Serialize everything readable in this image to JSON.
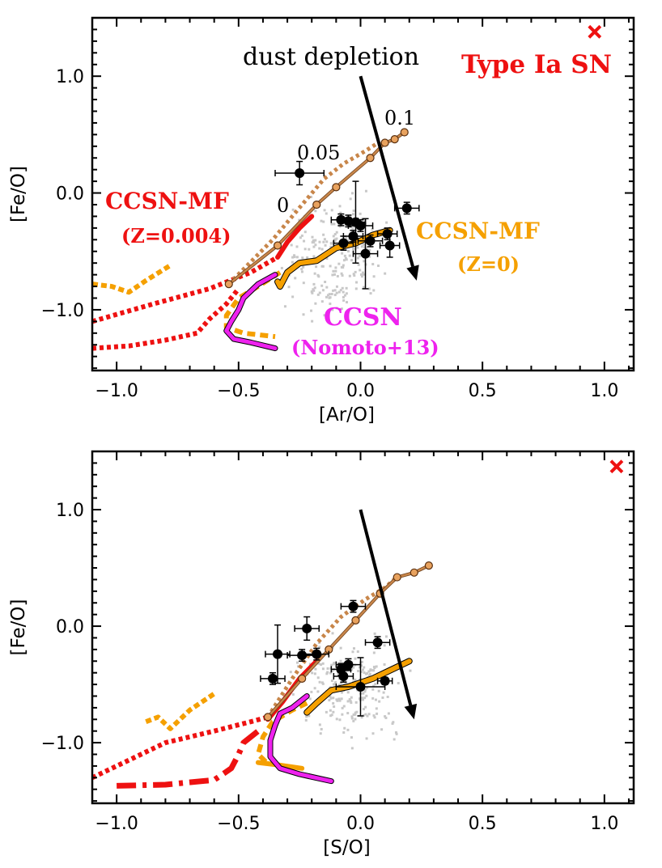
{
  "colors": {
    "red": "#ee1111",
    "orange": "#f5a000",
    "magenta": "#ee22ee",
    "brown": "#c8864a",
    "black": "#000000",
    "grey": "#c8c8c8"
  },
  "chart_data": [
    {
      "id": "top",
      "type": "scatter",
      "xlabel": "[Ar/O]",
      "ylabel": "[Fe/O]",
      "xlim": [
        -1.1,
        1.12
      ],
      "ylim": [
        -1.52,
        1.5
      ],
      "xticks": [
        -1.0,
        -0.5,
        0.0,
        0.5,
        1.0
      ],
      "xtick_labels": [
        "−1.0",
        "−0.5",
        "0.0",
        "0.5",
        "1.0"
      ],
      "yticks": [
        -1.0,
        0.0,
        1.0
      ],
      "ytick_labels": [
        "−1.0",
        "0.0",
        "1.0"
      ],
      "annotations": {
        "dust": "dust depletion",
        "typeia": "Type Ia SN",
        "ccsn_mf_z004_1": "CCSN-MF",
        "ccsn_mf_z004_2": "(Z=0.004)",
        "ccsn_mf_z0_1": "CCSN-MF",
        "ccsn_mf_z0_2": "(Z=0)",
        "ccsn_1": "CCSN",
        "ccsn_2": "(Nomoto+13)",
        "frac_0": "0",
        "frac_005": "0.05",
        "frac_01": "0.1"
      },
      "typeia_marker": [
        0.96,
        1.38
      ],
      "dust_arrow": [
        [
          0.0,
          1.0
        ],
        [
          0.23,
          -0.75
        ]
      ],
      "observations": [
        {
          "x": -0.25,
          "y": 0.17,
          "xerr": 0.1,
          "yerr": 0.1
        },
        {
          "x": -0.08,
          "y": -0.23,
          "xerr": 0.04,
          "yerr": 0.05
        },
        {
          "x": -0.05,
          "y": -0.24,
          "xerr": 0.04,
          "yerr": 0.05
        },
        {
          "x": -0.02,
          "y": -0.25,
          "xerr": 0.04,
          "yerr": 0.35
        },
        {
          "x": 0.0,
          "y": -0.28,
          "xerr": 0.05,
          "yerr": 0.05
        },
        {
          "x": -0.07,
          "y": -0.43,
          "xerr": 0.04,
          "yerr": 0.06
        },
        {
          "x": -0.03,
          "y": -0.37,
          "xerr": 0.04,
          "yerr": 0.05
        },
        {
          "x": 0.04,
          "y": -0.41,
          "xerr": 0.05,
          "yerr": 0.05
        },
        {
          "x": 0.02,
          "y": -0.52,
          "xerr": 0.05,
          "yerr": 0.3
        },
        {
          "x": 0.11,
          "y": -0.35,
          "xerr": 0.04,
          "yerr": 0.05
        },
        {
          "x": 0.12,
          "y": -0.45,
          "xerr": 0.04,
          "yerr": 0.1
        },
        {
          "x": 0.19,
          "y": -0.13,
          "xerr": 0.05,
          "yerr": 0.05
        }
      ],
      "mixing_line": {
        "x": [
          -0.54,
          -0.34,
          -0.18,
          -0.1,
          0.04,
          0.1,
          0.14,
          0.18
        ],
        "y": [
          -0.78,
          -0.45,
          -0.1,
          0.05,
          0.3,
          0.43,
          0.46,
          0.52
        ]
      },
      "mixing_line_dotted": {
        "x": [
          -0.54,
          -0.36,
          -0.26,
          -0.15,
          -0.07,
          0.02,
          0.08
        ],
        "y": [
          -0.78,
          -0.4,
          -0.15,
          0.12,
          0.25,
          0.36,
          0.44
        ]
      },
      "ccsn_curve": {
        "x": [
          -0.35,
          -0.42,
          -0.48,
          -0.5,
          -0.53,
          -0.55,
          -0.52,
          -0.45,
          -0.35
        ],
        "y": [
          -0.7,
          -0.78,
          -0.9,
          -1.0,
          -1.1,
          -1.18,
          -1.25,
          -1.28,
          -1.33
        ]
      },
      "ccsn_mf_z0_curve": {
        "x": [
          -0.34,
          -0.33,
          -0.3,
          -0.25,
          -0.18,
          -0.1,
          -0.02,
          0.05,
          0.12
        ],
        "y": [
          -0.76,
          -0.8,
          -0.68,
          -0.6,
          -0.58,
          -0.47,
          -0.43,
          -0.36,
          -0.32
        ]
      },
      "ccsn_mf_z0_dashed": {
        "x": [
          -0.33,
          -0.42,
          -0.5,
          -0.55,
          -0.55,
          -0.48,
          -0.35
        ],
        "y": [
          -0.68,
          -0.8,
          -0.9,
          -1.05,
          -1.15,
          -1.2,
          -1.23
        ]
      },
      "ccsn_mf_z004_curve": {
        "x": [
          -0.34,
          -0.3,
          -0.25,
          -0.2
        ],
        "y": [
          -0.55,
          -0.42,
          -0.3,
          -0.2
        ]
      },
      "ccsn_mf_z004_dotted": {
        "x": [
          -1.1,
          -0.85,
          -0.62,
          -0.45,
          -0.34
        ],
        "y": [
          -1.1,
          -0.95,
          -0.82,
          -0.68,
          -0.55
        ]
      },
      "ccsn_mf_z004_dotted2": {
        "x": [
          -1.1,
          -0.95,
          -0.8,
          -0.67,
          -0.62,
          -0.55,
          -0.5
        ],
        "y": [
          -1.33,
          -1.31,
          -1.26,
          -1.2,
          -1.08,
          -0.95,
          -0.82
        ]
      },
      "orange_frag": {
        "x": [
          -1.1,
          -1.02,
          -0.95,
          -0.88,
          -0.78
        ],
        "y": [
          -0.78,
          -0.8,
          -0.85,
          -0.75,
          -0.62
        ]
      },
      "grey_cloud": {
        "cx": -0.1,
        "cy": -0.55,
        "sx": 0.12,
        "sy": 0.3,
        "n": 220
      }
    },
    {
      "id": "bottom",
      "type": "scatter",
      "xlabel": "[S/O]",
      "ylabel": "[Fe/O]",
      "xlim": [
        -1.1,
        1.12
      ],
      "ylim": [
        -1.52,
        1.5
      ],
      "xticks": [
        -1.0,
        -0.5,
        0.0,
        0.5,
        1.0
      ],
      "xtick_labels": [
        "−1.0",
        "−0.5",
        "0.0",
        "0.5",
        "1.0"
      ],
      "yticks": [
        -1.0,
        0.0,
        1.0
      ],
      "ytick_labels": [
        "−1.0",
        "0.0",
        "1.0"
      ],
      "typeia_marker": [
        1.05,
        1.37
      ],
      "dust_arrow": [
        [
          0.0,
          1.0
        ],
        [
          0.22,
          -0.8
        ]
      ],
      "observations": [
        {
          "x": -0.36,
          "y": -0.45,
          "xerr": 0.05,
          "yerr": 0.05
        },
        {
          "x": -0.34,
          "y": -0.24,
          "xerr": 0.05,
          "yerr": 0.25
        },
        {
          "x": -0.22,
          "y": -0.02,
          "xerr": 0.05,
          "yerr": 0.1
        },
        {
          "x": -0.24,
          "y": -0.25,
          "xerr": 0.06,
          "yerr": 0.05
        },
        {
          "x": -0.18,
          "y": -0.24,
          "xerr": 0.05,
          "yerr": 0.05
        },
        {
          "x": -0.03,
          "y": 0.17,
          "xerr": 0.05,
          "yerr": 0.05
        },
        {
          "x": -0.08,
          "y": -0.37,
          "xerr": 0.04,
          "yerr": 0.05
        },
        {
          "x": -0.05,
          "y": -0.33,
          "xerr": 0.05,
          "yerr": 0.05
        },
        {
          "x": -0.07,
          "y": -0.43,
          "xerr": 0.04,
          "yerr": 0.05
        },
        {
          "x": 0.0,
          "y": -0.52,
          "xerr": 0.1,
          "yerr": 0.25
        },
        {
          "x": 0.07,
          "y": -0.14,
          "xerr": 0.05,
          "yerr": 0.05
        },
        {
          "x": 0.1,
          "y": -0.47,
          "xerr": 0.03,
          "yerr": 0.03
        }
      ],
      "mixing_line": {
        "x": [
          -0.38,
          -0.24,
          -0.13,
          -0.02,
          0.08,
          0.15,
          0.22,
          0.28
        ],
        "y": [
          -0.78,
          -0.45,
          -0.2,
          0.05,
          0.28,
          0.42,
          0.46,
          0.52
        ]
      },
      "mixing_line_dotted": {
        "x": [
          -0.38,
          -0.28,
          -0.18,
          -0.08,
          0.02,
          0.1,
          0.16
        ],
        "y": [
          -0.78,
          -0.45,
          -0.15,
          0.08,
          0.23,
          0.33,
          0.44
        ]
      },
      "ccsn_curve": {
        "x": [
          -0.22,
          -0.28,
          -0.33,
          -0.35,
          -0.37,
          -0.37,
          -0.33,
          -0.25,
          -0.12
        ],
        "y": [
          -0.6,
          -0.7,
          -0.75,
          -0.85,
          -0.98,
          -1.12,
          -1.22,
          -1.27,
          -1.33
        ]
      },
      "ccsn_mf_z0_curve": {
        "x": [
          -0.21,
          -0.22,
          -0.18,
          -0.12,
          -0.05,
          0.05,
          0.12,
          0.2
        ],
        "y": [
          -0.72,
          -0.74,
          -0.66,
          -0.55,
          -0.52,
          -0.45,
          -0.38,
          -0.3
        ]
      },
      "ccsn_mf_z0_dashed": {
        "x": [
          -0.22,
          -0.28,
          -0.36,
          -0.4,
          -0.42,
          -0.38
        ],
        "y": [
          -0.66,
          -0.72,
          -0.82,
          -0.95,
          -1.1,
          -1.18
        ]
      },
      "ccsn_mf_z0_seg": {
        "x": [
          -0.42,
          -0.34,
          -0.24
        ],
        "y": [
          -1.17,
          -1.19,
          -1.22
        ]
      },
      "ccsn_mf_z004_curve": {
        "x": [
          -0.38,
          -0.32,
          -0.25,
          -0.18
        ],
        "y": [
          -0.8,
          -0.65,
          -0.45,
          -0.3
        ]
      },
      "ccsn_mf_z004_dotted": {
        "x": [
          -1.1,
          -0.95,
          -0.8,
          -0.6,
          -0.45,
          -0.38
        ],
        "y": [
          -1.3,
          -1.15,
          -1.0,
          -0.9,
          -0.82,
          -0.78
        ]
      },
      "ccsn_mf_z004_dashdot": {
        "x": [
          -1.0,
          -0.8,
          -0.6,
          -0.53,
          -0.5,
          -0.48,
          -0.42
        ],
        "y": [
          -1.37,
          -1.36,
          -1.32,
          -1.22,
          -1.1,
          -1.0,
          -0.9
        ]
      },
      "orange_frag": {
        "x": [
          -0.88,
          -0.83,
          -0.78,
          -0.7,
          -0.6
        ],
        "y": [
          -0.82,
          -0.78,
          -0.88,
          -0.72,
          -0.58
        ]
      },
      "grey_cloud": {
        "cx": -0.05,
        "cy": -0.55,
        "sx": 0.13,
        "sy": 0.3,
        "n": 220
      }
    }
  ]
}
